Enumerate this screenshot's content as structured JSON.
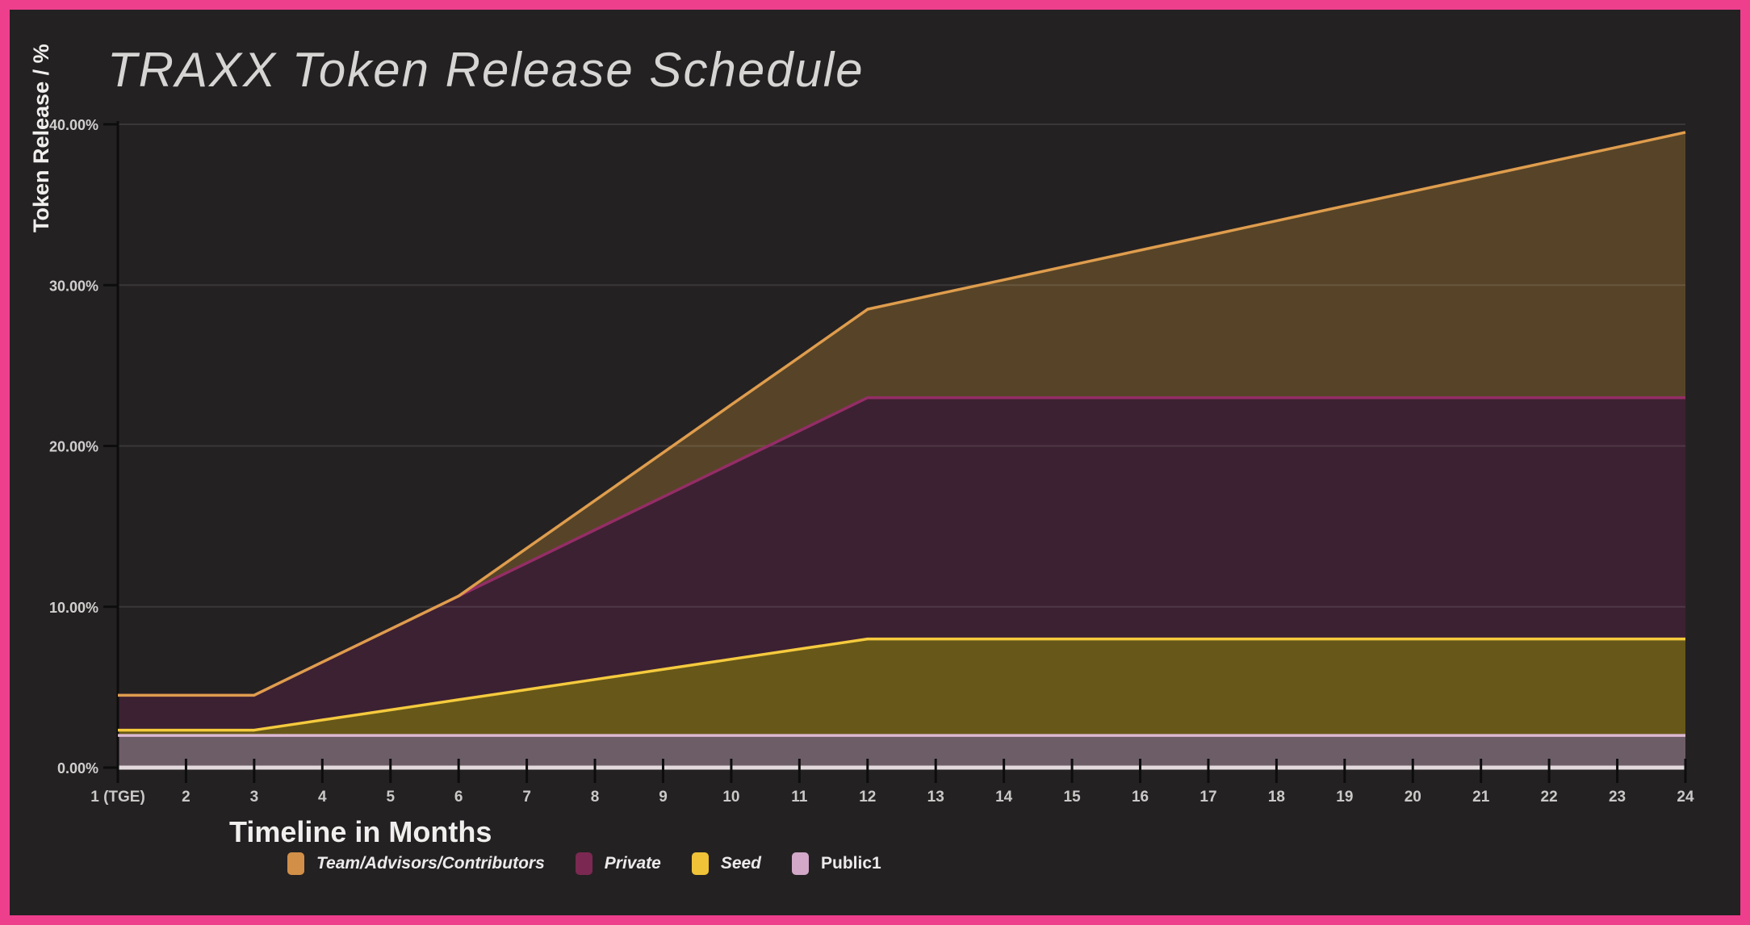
{
  "page": {
    "border_color": "#ee3f8d",
    "background": "#242122"
  },
  "title": "TRAXX Token Release Schedule",
  "y_axis": {
    "label": "Token Release / %",
    "ticks": [
      0,
      10,
      20,
      30,
      40
    ],
    "tick_labels": [
      "0.00%",
      "10.00%",
      "20.00%",
      "30.00%",
      "40.00%"
    ]
  },
  "x_axis": {
    "label": "Timeline in Months"
  },
  "legend": [
    {
      "id": "team",
      "label": "Team/Advisors/Contributors",
      "color": "#d28f47",
      "bold": false
    },
    {
      "id": "private",
      "label": "Private",
      "color": "#7b2952",
      "bold": false
    },
    {
      "id": "seed",
      "label": "Seed",
      "color": "#efc238",
      "bold": false
    },
    {
      "id": "public1",
      "label": "Public1",
      "color": "#d2a7c7",
      "bold": true
    }
  ],
  "chart_data": {
    "type": "area",
    "stacked": true,
    "title": "TRAXX Token Release Schedule",
    "xlabel": "Timeline in Months",
    "ylabel": "Token Release / %",
    "ylim": [
      0,
      40
    ],
    "grid": "horizontal",
    "legend_position": "bottom",
    "x": [
      1,
      2,
      3,
      4,
      5,
      6,
      7,
      8,
      9,
      10,
      11,
      12,
      13,
      14,
      15,
      16,
      17,
      18,
      19,
      20,
      21,
      22,
      23,
      24
    ],
    "x_tick_labels": [
      "1 (TGE)",
      "2",
      "3",
      "4",
      "5",
      "6",
      "7",
      "8",
      "9",
      "10",
      "11",
      "12",
      "13",
      "14",
      "15",
      "16",
      "17",
      "18",
      "19",
      "20",
      "21",
      "22",
      "23",
      "24"
    ],
    "unit": "%",
    "series": [
      {
        "id": "public1",
        "name": "Public1",
        "line_color": "#dcb9d4",
        "fill_color": "#6d5d67",
        "values": [
          2,
          2,
          2,
          2,
          2,
          2,
          2,
          2,
          2,
          2,
          2,
          2,
          2,
          2,
          2,
          2,
          2,
          2,
          2,
          2,
          2,
          2,
          2,
          2
        ]
      },
      {
        "id": "seed",
        "name": "Seed",
        "line_color": "#f5ca3d",
        "fill_color": "#675819",
        "values": [
          0.33,
          0.33,
          0.33,
          0.96,
          1.59,
          2.22,
          2.85,
          3.48,
          4.11,
          4.74,
          5.37,
          6,
          6,
          6,
          6,
          6,
          6,
          6,
          6,
          6,
          6,
          6,
          6,
          6
        ]
      },
      {
        "id": "private",
        "name": "Private",
        "line_color": "#942d66",
        "fill_color": "#3c2132",
        "values": [
          2.17,
          2.17,
          2.17,
          3.6,
          5.02,
          6.45,
          7.87,
          9.3,
          10.72,
          12.15,
          13.57,
          15,
          15,
          15,
          15,
          15,
          15,
          15,
          15,
          15,
          15,
          15,
          15,
          15
        ]
      },
      {
        "id": "team",
        "name": "Team/Advisors/Contributors",
        "line_color": "#df9d4d",
        "fill_color": "#574428",
        "values": [
          0,
          0,
          0,
          0,
          0,
          0,
          0.92,
          1.83,
          2.75,
          3.67,
          4.58,
          5.5,
          6.42,
          7.33,
          8.25,
          9.17,
          10.08,
          11,
          11.92,
          12.83,
          13.75,
          14.67,
          15.58,
          16.5
        ]
      }
    ],
    "cumulative_totals_pct": {
      "month_1_tge": 4.5,
      "month_12": 28.5,
      "month_24": 39.5
    }
  }
}
